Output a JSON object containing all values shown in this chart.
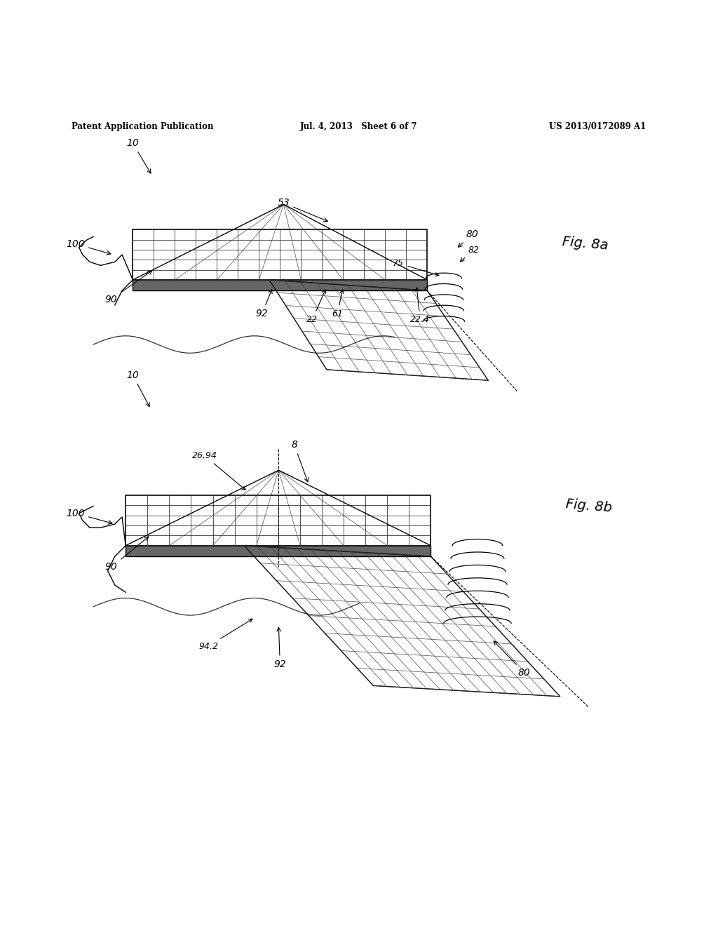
{
  "bg_color": "#ffffff",
  "header_left": "Patent Application Publication",
  "header_mid": "Jul. 4, 2013   Sheet 6 of 7",
  "header_right": "US 2013/0172089 A1",
  "fig_b_label": "Fig. 8b",
  "fig_a_label": "Fig. 8a",
  "label_fontsize": 10,
  "label_fontsize_sm": 9
}
